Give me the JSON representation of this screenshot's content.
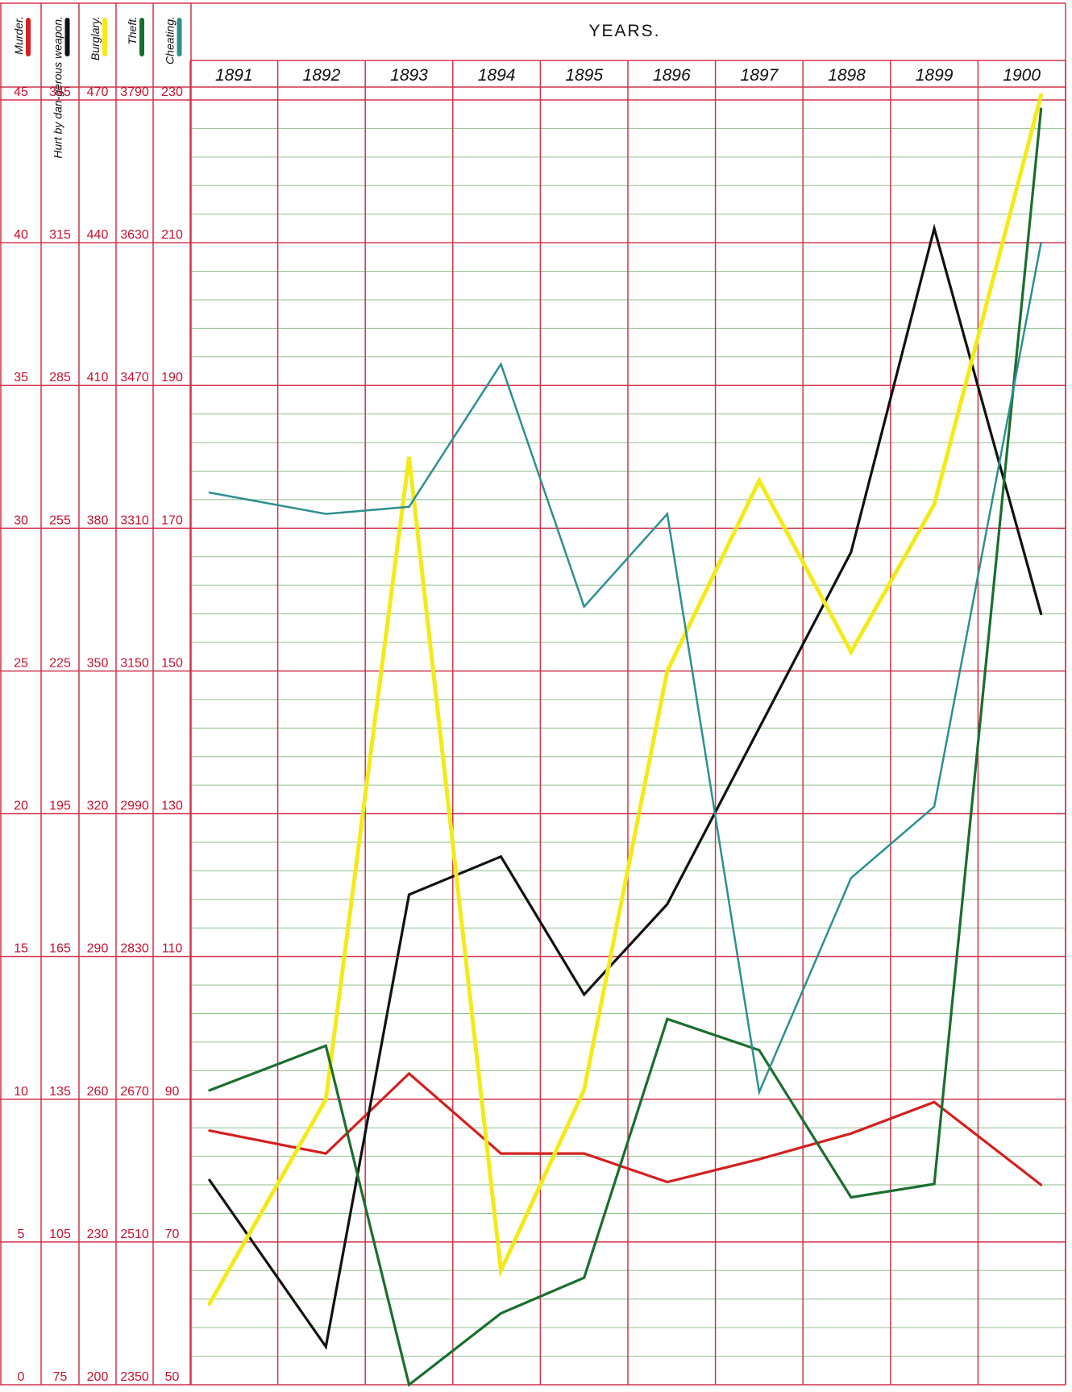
{
  "chart_data": {
    "type": "line",
    "title": "YEARS.",
    "x": [
      "1891",
      "1892",
      "1893",
      "1894",
      "1895",
      "1896",
      "1897",
      "1898",
      "1899",
      "1900"
    ],
    "grid": true,
    "scales": [
      {
        "name": "Murder.",
        "ticks": [
          "0",
          "5",
          "10",
          "15",
          "20",
          "25",
          "30",
          "35",
          "40",
          "45"
        ],
        "ylim": [
          0,
          45
        ]
      },
      {
        "name": "Hurt by dan-gerous weapon.",
        "ticks": [
          "75",
          "105",
          "135",
          "165",
          "195",
          "225",
          "255",
          "285",
          "315",
          "345"
        ],
        "ylim": [
          75,
          345
        ]
      },
      {
        "name": "Burglary.",
        "ticks": [
          "200",
          "230",
          "260",
          "290",
          "320",
          "350",
          "380",
          "410",
          "440",
          "470"
        ],
        "ylim": [
          200,
          470
        ]
      },
      {
        "name": "Theft.",
        "ticks": [
          "2350",
          "2510",
          "2670",
          "2830",
          "2990",
          "3150",
          "3310",
          "3470",
          "3630",
          "3790"
        ],
        "ylim": [
          2350,
          3790
        ]
      },
      {
        "name": "Cheating.",
        "ticks": [
          "50",
          "70",
          "90",
          "110",
          "130",
          "150",
          "170",
          "190",
          "210",
          "230"
        ],
        "ylim": [
          50,
          230
        ]
      }
    ],
    "series": [
      {
        "name": "Murder.",
        "color": "#d42020",
        "values": [
          8.9,
          8.1,
          10.9,
          8.1,
          8.1,
          7.1,
          7.9,
          8.8,
          9.9,
          7.0
        ]
      },
      {
        "name": "Hurt by dan-gerous weapon.",
        "color": "#111111",
        "values": [
          118,
          83,
          178,
          186,
          157,
          176,
          213,
          250,
          318,
          237
        ]
      },
      {
        "name": "Burglary.",
        "color": "#f4ea1a",
        "values": [
          217,
          260,
          395,
          224,
          262,
          350,
          390,
          354,
          385,
          471
        ]
      },
      {
        "name": "Theft.",
        "color": "#1b6e2e",
        "values": [
          2680,
          2730,
          2350,
          2430,
          2470,
          2760,
          2725,
          2560,
          2575,
          3780
        ]
      },
      {
        "name": "Cheating.",
        "color": "#2e8f8f",
        "values": [
          175,
          172,
          173,
          193,
          159,
          172,
          91,
          121,
          131,
          210
        ]
      }
    ]
  }
}
